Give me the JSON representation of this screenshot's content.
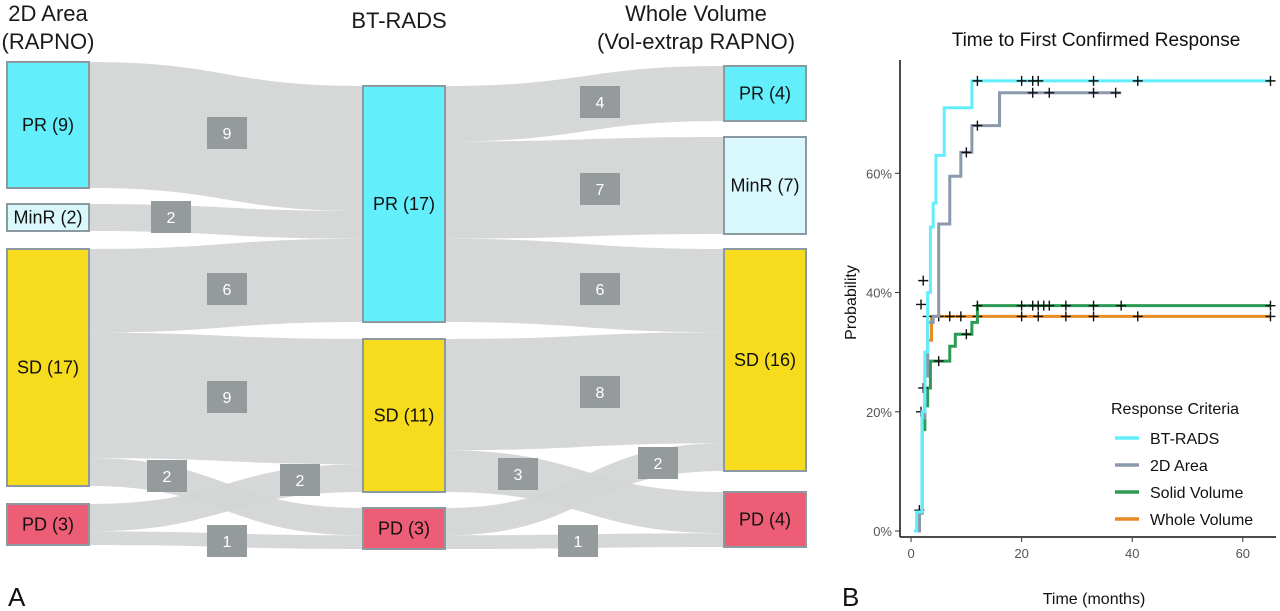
{
  "panels": {
    "left_letter": "A",
    "right_letter": "B"
  },
  "chart_data": [
    {
      "type": "sankey",
      "columns": [
        {
          "header_lines": [
            "2D Area",
            "(RAPNO)"
          ],
          "nodes": [
            {
              "id": "a_pr",
              "label": "PR (9)",
              "value": 9,
              "color": "#62eefa"
            },
            {
              "id": "a_minr",
              "label": "MinR (2)",
              "value": 2,
              "color": "#d9f8fb"
            },
            {
              "id": "a_sd",
              "label": "SD (17)",
              "value": 17,
              "color": "#f7dc1e"
            },
            {
              "id": "a_pd",
              "label": "PD (3)",
              "value": 3,
              "color": "#ee5d76"
            }
          ]
        },
        {
          "header_lines": [
            "BT-RADS"
          ],
          "nodes": [
            {
              "id": "b_pr",
              "label": "PR (17)",
              "value": 17,
              "color": "#62eefa"
            },
            {
              "id": "b_sd",
              "label": "SD (11)",
              "value": 11,
              "color": "#f7dc1e"
            },
            {
              "id": "b_pd",
              "label": "PD (3)",
              "value": 3,
              "color": "#ee5d76"
            }
          ]
        },
        {
          "header_lines": [
            "Whole Volume",
            "(Vol-extrap RAPNO)"
          ],
          "nodes": [
            {
              "id": "c_pr",
              "label": "PR (4)",
              "value": 4,
              "color": "#62eefa"
            },
            {
              "id": "c_minr",
              "label": "MinR (7)",
              "value": 7,
              "color": "#d9f8fb"
            },
            {
              "id": "c_sd",
              "label": "SD (16)",
              "value": 16,
              "color": "#f7dc1e"
            },
            {
              "id": "c_pd",
              "label": "PD (4)",
              "value": 4,
              "color": "#ee5d76"
            }
          ]
        }
      ],
      "links": [
        {
          "source": "a_pr",
          "target": "b_pr",
          "value": 9,
          "label": "9"
        },
        {
          "source": "a_minr",
          "target": "b_pr",
          "value": 2,
          "label": "2"
        },
        {
          "source": "a_sd",
          "target": "b_pr",
          "value": 6,
          "label": "6"
        },
        {
          "source": "a_sd",
          "target": "b_sd",
          "value": 9,
          "label": "9"
        },
        {
          "source": "a_sd",
          "target": "b_pd",
          "value": 2,
          "label": "2"
        },
        {
          "source": "a_pd",
          "target": "b_sd",
          "value": 2,
          "label": "2"
        },
        {
          "source": "a_pd",
          "target": "b_pd",
          "value": 1,
          "label": "1"
        },
        {
          "source": "b_pr",
          "target": "c_pr",
          "value": 4,
          "label": "4"
        },
        {
          "source": "b_pr",
          "target": "c_minr",
          "value": 7,
          "label": "7"
        },
        {
          "source": "b_pr",
          "target": "c_sd",
          "value": 6,
          "label": "6"
        },
        {
          "source": "b_sd",
          "target": "c_sd",
          "value": 8,
          "label": "8"
        },
        {
          "source": "b_sd",
          "target": "c_pd",
          "value": 3,
          "label": "3"
        },
        {
          "source": "b_pd",
          "target": "c_sd",
          "value": 2,
          "label": "2"
        },
        {
          "source": "b_pd",
          "target": "c_pd",
          "value": 1,
          "label": "1"
        }
      ]
    },
    {
      "type": "line",
      "title": "Time to First Confirmed Response",
      "xlabel": "Time (months)",
      "ylabel": "Probability",
      "xlim": [
        -2,
        66
      ],
      "ylim": [
        -0.01,
        0.79
      ],
      "xticks": [
        0,
        20,
        40,
        60
      ],
      "yticks": [
        0,
        0.2,
        0.4,
        0.6
      ],
      "ytick_labels": [
        "0%",
        "20%",
        "40%",
        "60%"
      ],
      "legend": {
        "title": "Response Criteria",
        "position": "bottom-right"
      },
      "series": [
        {
          "name": "BT-RADS",
          "color": "#62eefa",
          "steps": [
            [
              0.5,
              0
            ],
            [
              1,
              0.032
            ],
            [
              2,
              0.2
            ],
            [
              2.5,
              0.3
            ],
            [
              3,
              0.4
            ],
            [
              3.5,
              0.51
            ],
            [
              4,
              0.55
            ],
            [
              4.5,
              0.63
            ],
            [
              6,
              0.71
            ],
            [
              11,
              0.755
            ],
            [
              65,
              0.755
            ]
          ],
          "censor": [
            [
              12,
              0.755
            ],
            [
              20,
              0.755
            ],
            [
              22,
              0.755
            ],
            [
              23,
              0.755
            ],
            [
              33,
              0.755
            ],
            [
              41,
              0.755
            ],
            [
              65,
              0.755
            ]
          ]
        },
        {
          "name": "2D Area",
          "color": "#8b99ad",
          "steps": [
            [
              1,
              0
            ],
            [
              1.5,
              0.03
            ],
            [
              2,
              0.19
            ],
            [
              2.5,
              0.26
            ],
            [
              3,
              0.35
            ],
            [
              4,
              0.36
            ],
            [
              5,
              0.515
            ],
            [
              7,
              0.595
            ],
            [
              9,
              0.635
            ],
            [
              11,
              0.68
            ],
            [
              16,
              0.735
            ],
            [
              38,
              0.735
            ]
          ],
          "censor": [
            [
              10,
              0.635
            ],
            [
              12,
              0.68
            ],
            [
              22,
              0.735
            ],
            [
              25,
              0.735
            ],
            [
              33,
              0.735
            ],
            [
              37,
              0.735
            ]
          ]
        },
        {
          "name": "Solid Volume",
          "color": "#2e9a55",
          "steps": [
            [
              1,
              0
            ],
            [
              1.5,
              0.03
            ],
            [
              2,
              0.17
            ],
            [
              2.5,
              0.21
            ],
            [
              3,
              0.24
            ],
            [
              3.5,
              0.285
            ],
            [
              7,
              0.31
            ],
            [
              8,
              0.33
            ],
            [
              11,
              0.35
            ],
            [
              12,
              0.378
            ],
            [
              65,
              0.378
            ]
          ],
          "censor": [
            [
              1.8,
              0.2
            ],
            [
              2.2,
              0.24
            ],
            [
              5,
              0.285
            ],
            [
              10,
              0.33
            ],
            [
              12,
              0.378
            ],
            [
              20,
              0.378
            ],
            [
              22,
              0.378
            ],
            [
              23,
              0.378
            ],
            [
              24,
              0.378
            ],
            [
              25,
              0.378
            ],
            [
              28,
              0.378
            ],
            [
              33,
              0.378
            ],
            [
              38,
              0.378
            ],
            [
              65,
              0.378
            ]
          ]
        },
        {
          "name": "Whole Volume",
          "color": "#ea8a22",
          "steps": [
            [
              1,
              0
            ],
            [
              1.5,
              0.03
            ],
            [
              2,
              0.2
            ],
            [
              2.5,
              0.27
            ],
            [
              3,
              0.32
            ],
            [
              3.7,
              0.36
            ],
            [
              65,
              0.36
            ]
          ],
          "censor": [
            [
              1.5,
              0.035
            ],
            [
              1.8,
              0.38
            ],
            [
              2.2,
              0.42
            ],
            [
              3,
              0.36
            ],
            [
              5,
              0.36
            ],
            [
              7,
              0.36
            ],
            [
              9,
              0.36
            ],
            [
              12,
              0.36
            ],
            [
              20,
              0.36
            ],
            [
              23,
              0.36
            ],
            [
              28,
              0.36
            ],
            [
              33,
              0.36
            ],
            [
              41,
              0.36
            ],
            [
              65,
              0.36
            ]
          ]
        }
      ]
    }
  ]
}
